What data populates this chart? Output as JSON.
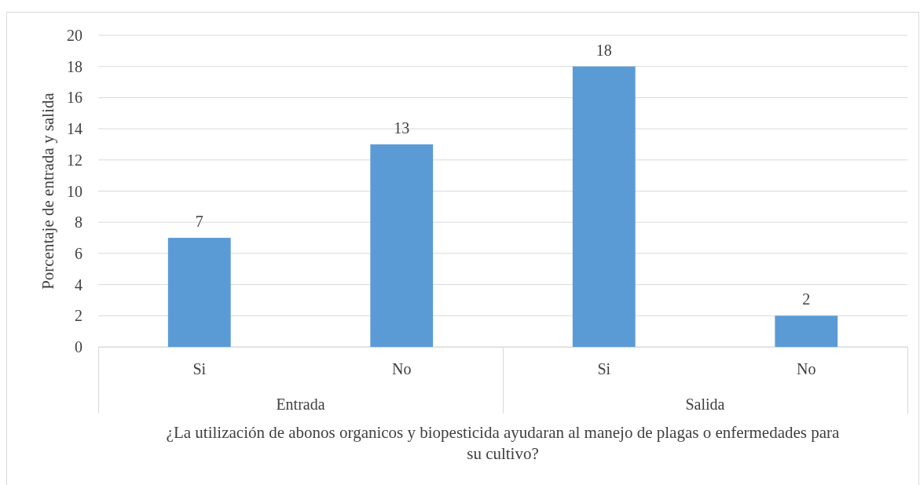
{
  "chart_data": {
    "type": "bar",
    "ylabel": "Porcentaje de entrada y salida",
    "xlabel": "¿La utilización de abonos organicos y biopesticida ayudaran al manejo de plagas o enfermedades para su cultivo?",
    "categories": [
      "Si",
      "No",
      "Si",
      "No"
    ],
    "values": [
      7,
      13,
      18,
      2
    ],
    "color": "#5b9bd5",
    "ylim": [
      0,
      20
    ],
    "yticks": [
      0,
      2,
      4,
      6,
      8,
      10,
      12,
      14,
      16,
      18,
      20
    ],
    "grid": "y",
    "data_labels": true,
    "annotations": [
      "Entrada",
      "Salida"
    ]
  }
}
